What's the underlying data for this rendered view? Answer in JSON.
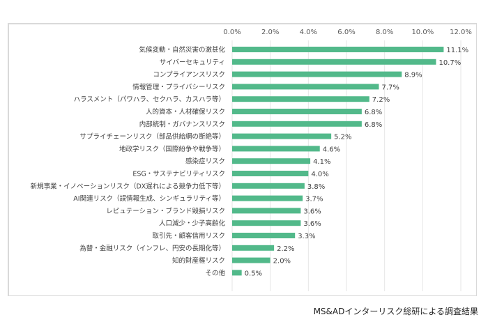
{
  "chart_data": {
    "type": "bar",
    "orientation": "horizontal",
    "categories": [
      "気候変動・自然災害の激甚化",
      "サイバーセキュリティ",
      "コンプライアンスリスク",
      "情報管理・プライバシーリスク",
      "ハラスメント（パワハラ、セクハラ、カスハラ等）",
      "人的資本・人材確保リスク",
      "内部統制・ガバナンスリスク",
      "サプライチェーンリスク（部品供給網の断絶等）",
      "地政学リスク（国際紛争や戦争等）",
      "感染症リスク",
      "ESG・サステナビリティリスク",
      "新規事業・イノベーションリスク（DX遅れによる競争力低下等）",
      "AI関連リスク（誤情報生成、シンギュラリティ等）",
      "レピュテーション・ブランド毀損リスク",
      "人口減少・少子高齢化",
      "取引先・顧客信用リスク",
      "為替・金融リスク（インフレ、円安の長期化等）",
      "知的財産権リスク",
      "その他"
    ],
    "values": [
      11.1,
      10.7,
      8.9,
      7.7,
      7.2,
      6.8,
      6.8,
      5.2,
      4.6,
      4.1,
      4.0,
      3.8,
      3.7,
      3.6,
      3.6,
      3.3,
      2.2,
      2.0,
      0.5
    ],
    "data_labels": [
      "11.1%",
      "10.7%",
      "8.9%",
      "7.7%",
      "7.2%",
      "6.8%",
      "6.8%",
      "5.2%",
      "4.6%",
      "4.1%",
      "4.0%",
      "3.8%",
      "3.7%",
      "3.6%",
      "3.6%",
      "3.3%",
      "2.2%",
      "2.0%",
      "0.5%"
    ],
    "xlim": [
      0,
      12
    ],
    "x_ticks": [
      "0.0%",
      "2.0%",
      "4.0%",
      "6.0%",
      "8.0%",
      "10.0%",
      "12.0%"
    ],
    "x_axis_position": "top",
    "grid": true,
    "bar_color": "#52b98a"
  },
  "source": "MS&ADインターリスク総研による調査結果"
}
